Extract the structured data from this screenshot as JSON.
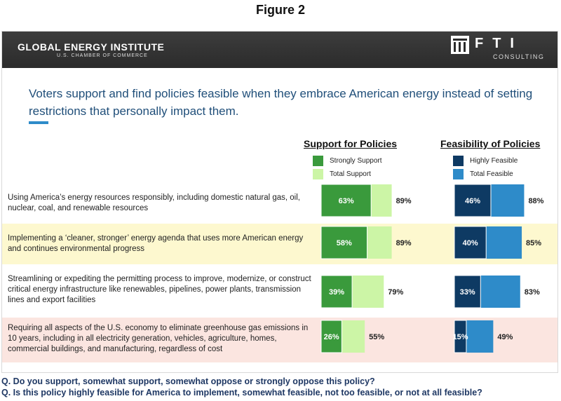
{
  "figure_title": "Figure 2",
  "header": {
    "left_logo": "GLOBAL ENERGY INSTITUTE",
    "left_logo_sub": "U.S. CHAMBER OF COMMERCE",
    "right_logo": "FTI",
    "right_logo_sub": "CONSULTING"
  },
  "headline": "Voters support and find policies feasible when they embrace American energy instead of setting restrictions that personally impact them.",
  "colors": {
    "strongly_support": "#3a9a3c",
    "total_support": "#ccf5a6",
    "highly_feasible": "#0e3a63",
    "total_feasible": "#2e8bc9",
    "row_highlight_yellow": "#fdf8cf",
    "row_highlight_pink": "#fbe5e0",
    "headline": "#1f4e79"
  },
  "questions": [
    "Q. Do you support, somewhat support, somewhat oppose or strongly oppose this policy?",
    "Q. Is this policy highly feasible for America to implement, somewhat feasible, not too feasible, or not at all feasible?"
  ],
  "chart_data": [
    {
      "type": "bar",
      "title": "Support for Policies",
      "categories": [
        "Using America’s energy resources responsibly, including domestic natural gas, oil, nuclear, coal, and renewable resources",
        "Implementing a ‘cleaner, stronger’ energy agenda that uses more American energy and continues environmental progress",
        "Streamlining or expediting the permitting process to improve, modernize, or construct critical energy infrastructure like renewables, pipelines, power plants, transmission lines and export facilities",
        "Requiring all aspects of the U.S. economy to eliminate greenhouse gas emissions in 10 years, including in all electricity generation, vehicles, agriculture, homes, commercial buildings, and manufacturing, regardless of cost"
      ],
      "series": [
        {
          "name": "Strongly Support",
          "values": [
            63,
            58,
            39,
            26
          ],
          "labels": [
            "63%",
            "58%",
            "39%",
            "26%"
          ]
        },
        {
          "name": "Total Support",
          "values": [
            89,
            89,
            79,
            55
          ],
          "labels": [
            "89%",
            "89%",
            "79%",
            "55%"
          ]
        }
      ],
      "orientation": "horizontal",
      "overlap": true
    },
    {
      "type": "bar",
      "title": "Feasibility of Policies",
      "series": [
        {
          "name": "Highly Feasible",
          "values": [
            46,
            40,
            33,
            15
          ],
          "labels": [
            "46%",
            "40%",
            "33%",
            "15%"
          ]
        },
        {
          "name": "Total Feasible",
          "values": [
            88,
            85,
            83,
            49
          ],
          "labels": [
            "88%",
            "85%",
            "83%",
            "49%"
          ]
        }
      ],
      "orientation": "horizontal",
      "overlap": true
    }
  ]
}
